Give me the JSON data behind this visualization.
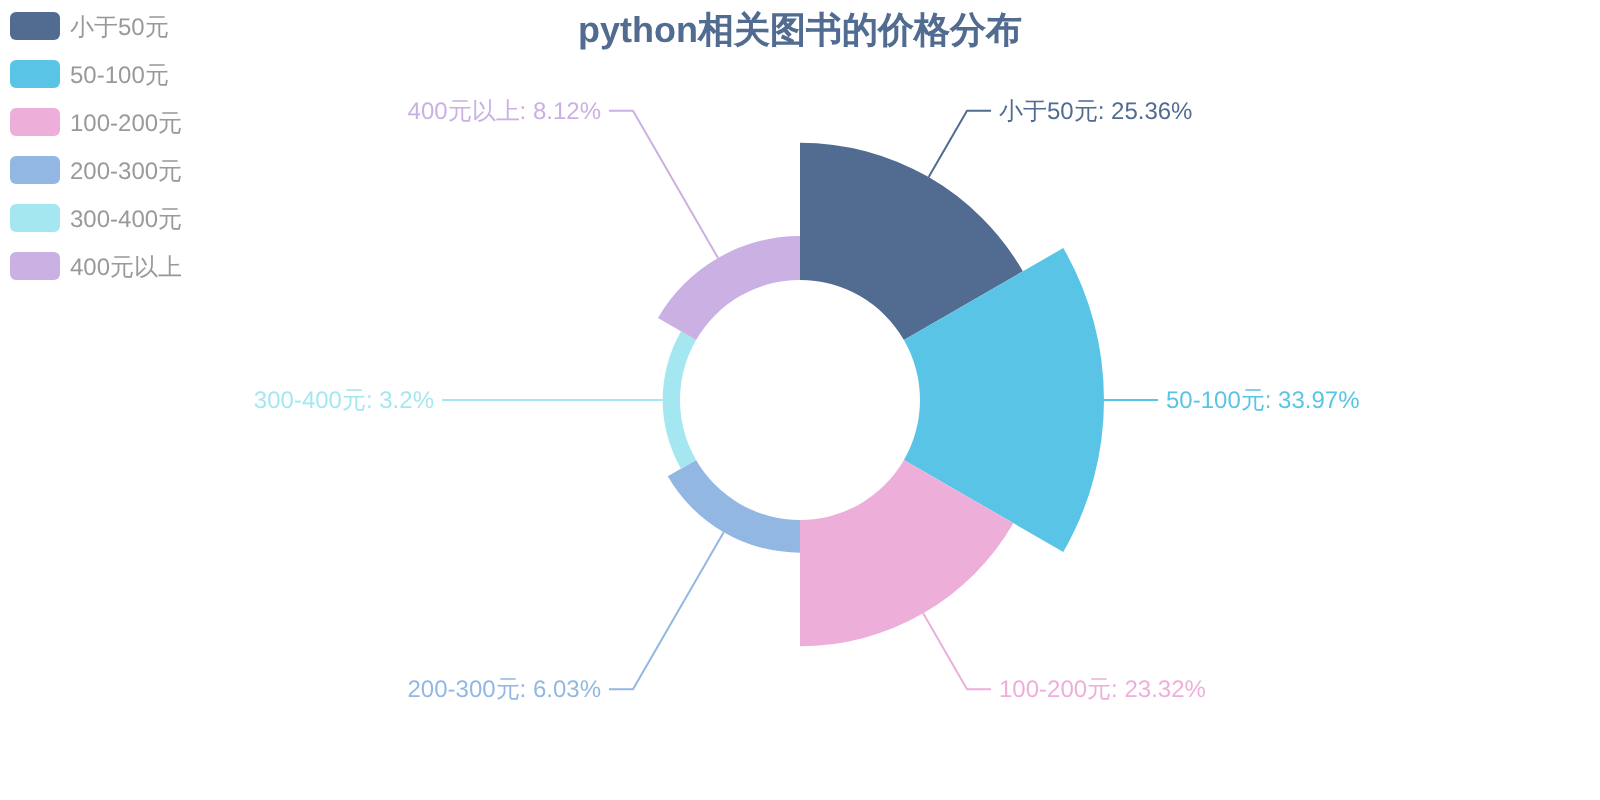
{
  "chart_data": {
    "type": "other",
    "title": "python相关图书的价格分布",
    "series": [
      {
        "name": "小于50元",
        "color": "#516b91",
        "values": [
          25.36
        ],
        "value_labels": [
          ": 25.36%"
        ]
      },
      {
        "name": "50-100元",
        "color": "#59c4e6",
        "values": [
          33.97
        ],
        "value_labels": [
          ": 33.97%"
        ]
      },
      {
        "name": "100-200元",
        "color": "#edafda",
        "values": [
          23.32
        ],
        "value_labels": [
          ": 23.32%"
        ]
      },
      {
        "name": "200-300元",
        "color": "#93b7e3",
        "values": [
          6.03
        ],
        "value_labels": [
          ": 6.03%"
        ]
      },
      {
        "name": "300-400元",
        "color": "#a5e7f0",
        "values": [
          3.2
        ],
        "value_labels": [
          ": 3.2%"
        ]
      },
      {
        "name": "400元以上",
        "color": "#cbb0e3",
        "values": [
          8.12
        ],
        "value_labels": [
          ": 8.12%"
        ]
      }
    ],
    "legend": "top left"
  }
}
